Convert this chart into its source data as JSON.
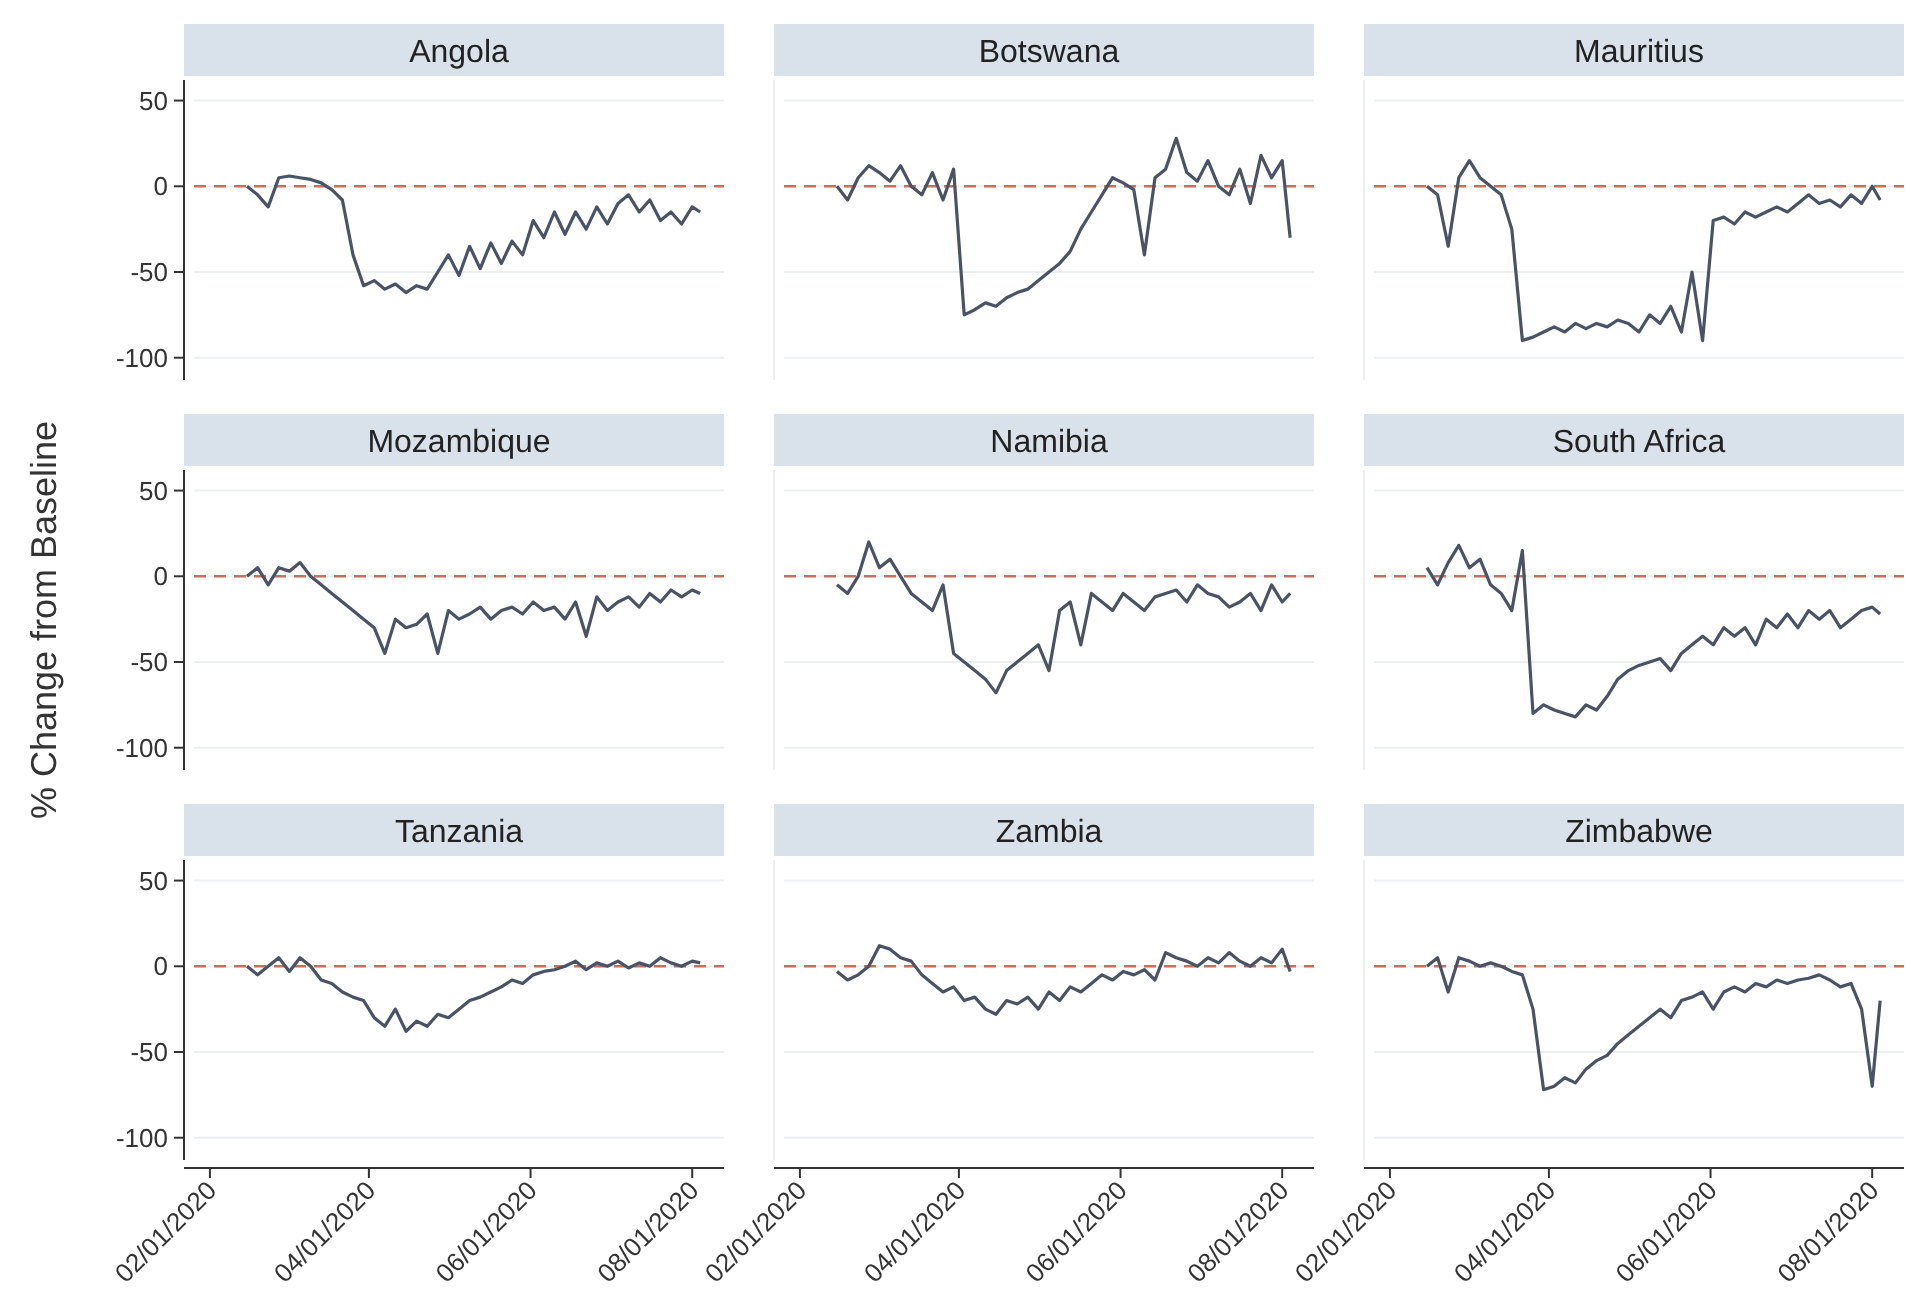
{
  "chart_data": [
    {
      "type": "line",
      "title": "Angola",
      "tick_labels": "y",
      "color": "#4a5366",
      "grid": "y",
      "xlim": [
        "2020-01-26",
        "2020-08-13"
      ],
      "ylim": [
        -113,
        62
      ],
      "yticks": [
        50,
        0,
        -50,
        -100
      ],
      "ref_lines": [
        {
          "axis": "y",
          "value": 0,
          "color": "#c0735a",
          "line_style": "dashed"
        }
      ],
      "x": [
        "2020-02-15",
        "2020-02-19",
        "2020-02-23",
        "2020-02-27",
        "2020-03-02",
        "2020-03-06",
        "2020-03-10",
        "2020-03-14",
        "2020-03-18",
        "2020-03-22",
        "2020-03-26",
        "2020-03-30",
        "2020-04-03",
        "2020-04-07",
        "2020-04-11",
        "2020-04-15",
        "2020-04-19",
        "2020-04-23",
        "2020-04-27",
        "2020-05-01",
        "2020-05-05",
        "2020-05-09",
        "2020-05-13",
        "2020-05-17",
        "2020-05-21",
        "2020-05-25",
        "2020-05-29",
        "2020-06-02",
        "2020-06-06",
        "2020-06-10",
        "2020-06-14",
        "2020-06-18",
        "2020-06-22",
        "2020-06-26",
        "2020-06-30",
        "2020-07-04",
        "2020-07-08",
        "2020-07-12",
        "2020-07-16",
        "2020-07-20",
        "2020-07-24",
        "2020-07-28",
        "2020-08-01",
        "2020-08-04"
      ],
      "values": [
        0,
        -5,
        -12,
        5,
        6,
        5,
        4,
        2,
        -2,
        -8,
        -40,
        -58,
        -55,
        -60,
        -57,
        -62,
        -58,
        -60,
        -50,
        -40,
        -52,
        -35,
        -48,
        -33,
        -45,
        -32,
        -40,
        -20,
        -30,
        -15,
        -28,
        -15,
        -25,
        -12,
        -22,
        -10,
        -5,
        -15,
        -8,
        -20,
        -15,
        -22,
        -12,
        -15
      ]
    },
    {
      "type": "line",
      "title": "Botswana",
      "tick_labels": false,
      "color": "#4a5366",
      "grid": "y",
      "xlim": [
        "2020-01-26",
        "2020-08-13"
      ],
      "ylim": [
        -113,
        62
      ],
      "yticks": [
        50,
        0,
        -50,
        -100
      ],
      "ref_lines": [
        {
          "axis": "y",
          "value": 0,
          "color": "#c0735a",
          "line_style": "dashed"
        }
      ],
      "x": [
        "2020-02-15",
        "2020-02-19",
        "2020-02-23",
        "2020-02-27",
        "2020-03-02",
        "2020-03-06",
        "2020-03-10",
        "2020-03-14",
        "2020-03-18",
        "2020-03-22",
        "2020-03-26",
        "2020-03-30",
        "2020-04-03",
        "2020-04-07",
        "2020-04-11",
        "2020-04-15",
        "2020-04-19",
        "2020-04-23",
        "2020-04-27",
        "2020-05-01",
        "2020-05-05",
        "2020-05-09",
        "2020-05-13",
        "2020-05-17",
        "2020-05-21",
        "2020-05-25",
        "2020-05-29",
        "2020-06-02",
        "2020-06-06",
        "2020-06-10",
        "2020-06-14",
        "2020-06-18",
        "2020-06-22",
        "2020-06-26",
        "2020-06-30",
        "2020-07-04",
        "2020-07-08",
        "2020-07-12",
        "2020-07-16",
        "2020-07-20",
        "2020-07-24",
        "2020-07-28",
        "2020-08-01",
        "2020-08-04"
      ],
      "values": [
        0,
        -8,
        5,
        12,
        8,
        3,
        12,
        0,
        -5,
        8,
        -8,
        10,
        -75,
        -72,
        -68,
        -70,
        -65,
        -62,
        -60,
        -55,
        -50,
        -45,
        -38,
        -25,
        -15,
        -5,
        5,
        2,
        -2,
        -40,
        5,
        10,
        28,
        8,
        3,
        15,
        0,
        -5,
        10,
        -10,
        18,
        5,
        15,
        -30
      ]
    },
    {
      "type": "line",
      "title": "Mauritius",
      "tick_labels": false,
      "color": "#4a5366",
      "grid": "y",
      "xlim": [
        "2020-01-26",
        "2020-08-13"
      ],
      "ylim": [
        -113,
        62
      ],
      "yticks": [
        50,
        0,
        -50,
        -100
      ],
      "ref_lines": [
        {
          "axis": "y",
          "value": 0,
          "color": "#c0735a",
          "line_style": "dashed"
        }
      ],
      "x": [
        "2020-02-15",
        "2020-02-19",
        "2020-02-23",
        "2020-02-27",
        "2020-03-02",
        "2020-03-06",
        "2020-03-10",
        "2020-03-14",
        "2020-03-18",
        "2020-03-22",
        "2020-03-26",
        "2020-03-30",
        "2020-04-03",
        "2020-04-07",
        "2020-04-11",
        "2020-04-15",
        "2020-04-19",
        "2020-04-23",
        "2020-04-27",
        "2020-05-01",
        "2020-05-05",
        "2020-05-09",
        "2020-05-13",
        "2020-05-17",
        "2020-05-21",
        "2020-05-25",
        "2020-05-29",
        "2020-06-02",
        "2020-06-06",
        "2020-06-10",
        "2020-06-14",
        "2020-06-18",
        "2020-06-22",
        "2020-06-26",
        "2020-06-30",
        "2020-07-04",
        "2020-07-08",
        "2020-07-12",
        "2020-07-16",
        "2020-07-20",
        "2020-07-24",
        "2020-07-28",
        "2020-08-01",
        "2020-08-04"
      ],
      "values": [
        0,
        -5,
        -35,
        5,
        15,
        5,
        0,
        -5,
        -25,
        -90,
        -88,
        -85,
        -82,
        -85,
        -80,
        -83,
        -80,
        -82,
        -78,
        -80,
        -85,
        -75,
        -80,
        -70,
        -85,
        -50,
        -90,
        -20,
        -18,
        -22,
        -15,
        -18,
        -15,
        -12,
        -15,
        -10,
        -5,
        -10,
        -8,
        -12,
        -5,
        -10,
        0,
        -8
      ]
    },
    {
      "type": "line",
      "title": "Mozambique",
      "ylabel": "% Change from Baseline",
      "tick_labels": "y",
      "color": "#4a5366",
      "grid": "y",
      "xlim": [
        "2020-01-26",
        "2020-08-13"
      ],
      "ylim": [
        -113,
        62
      ],
      "yticks": [
        50,
        0,
        -50,
        -100
      ],
      "ref_lines": [
        {
          "axis": "y",
          "value": 0,
          "color": "#c0735a",
          "line_style": "dashed"
        }
      ],
      "x": [
        "2020-02-15",
        "2020-02-19",
        "2020-02-23",
        "2020-02-27",
        "2020-03-02",
        "2020-03-06",
        "2020-03-10",
        "2020-03-14",
        "2020-03-18",
        "2020-03-22",
        "2020-03-26",
        "2020-03-30",
        "2020-04-03",
        "2020-04-07",
        "2020-04-11",
        "2020-04-15",
        "2020-04-19",
        "2020-04-23",
        "2020-04-27",
        "2020-05-01",
        "2020-05-05",
        "2020-05-09",
        "2020-05-13",
        "2020-05-17",
        "2020-05-21",
        "2020-05-25",
        "2020-05-29",
        "2020-06-02",
        "2020-06-06",
        "2020-06-10",
        "2020-06-14",
        "2020-06-18",
        "2020-06-22",
        "2020-06-26",
        "2020-06-30",
        "2020-07-04",
        "2020-07-08",
        "2020-07-12",
        "2020-07-16",
        "2020-07-20",
        "2020-07-24",
        "2020-07-28",
        "2020-08-01",
        "2020-08-04"
      ],
      "values": [
        0,
        5,
        -5,
        5,
        3,
        8,
        0,
        -5,
        -10,
        -15,
        -20,
        -25,
        -30,
        -45,
        -25,
        -30,
        -28,
        -22,
        -45,
        -20,
        -25,
        -22,
        -18,
        -25,
        -20,
        -18,
        -22,
        -15,
        -20,
        -18,
        -25,
        -15,
        -35,
        -12,
        -20,
        -15,
        -12,
        -18,
        -10,
        -15,
        -8,
        -12,
        -8,
        -10
      ]
    },
    {
      "type": "line",
      "title": "Namibia",
      "tick_labels": false,
      "color": "#4a5366",
      "grid": "y",
      "xlim": [
        "2020-01-26",
        "2020-08-13"
      ],
      "ylim": [
        -113,
        62
      ],
      "yticks": [
        50,
        0,
        -50,
        -100
      ],
      "ref_lines": [
        {
          "axis": "y",
          "value": 0,
          "color": "#c0735a",
          "line_style": "dashed"
        }
      ],
      "x": [
        "2020-02-15",
        "2020-02-19",
        "2020-02-23",
        "2020-02-27",
        "2020-03-02",
        "2020-03-06",
        "2020-03-10",
        "2020-03-14",
        "2020-03-18",
        "2020-03-22",
        "2020-03-26",
        "2020-03-30",
        "2020-04-03",
        "2020-04-07",
        "2020-04-11",
        "2020-04-15",
        "2020-04-19",
        "2020-04-23",
        "2020-04-27",
        "2020-05-01",
        "2020-05-05",
        "2020-05-09",
        "2020-05-13",
        "2020-05-17",
        "2020-05-21",
        "2020-05-25",
        "2020-05-29",
        "2020-06-02",
        "2020-06-06",
        "2020-06-10",
        "2020-06-14",
        "2020-06-18",
        "2020-06-22",
        "2020-06-26",
        "2020-06-30",
        "2020-07-04",
        "2020-07-08",
        "2020-07-12",
        "2020-07-16",
        "2020-07-20",
        "2020-07-24",
        "2020-07-28",
        "2020-08-01",
        "2020-08-04"
      ],
      "values": [
        -5,
        -10,
        0,
        20,
        5,
        10,
        0,
        -10,
        -15,
        -20,
        -5,
        -45,
        -50,
        -55,
        -60,
        -68,
        -55,
        -50,
        -45,
        -40,
        -55,
        -20,
        -15,
        -40,
        -10,
        -15,
        -20,
        -10,
        -15,
        -20,
        -12,
        -10,
        -8,
        -15,
        -5,
        -10,
        -12,
        -18,
        -15,
        -10,
        -20,
        -5,
        -15,
        -10
      ]
    },
    {
      "type": "line",
      "title": "South Africa",
      "tick_labels": false,
      "color": "#4a5366",
      "grid": "y",
      "xlim": [
        "2020-01-26",
        "2020-08-13"
      ],
      "ylim": [
        -113,
        62
      ],
      "yticks": [
        50,
        0,
        -50,
        -100
      ],
      "ref_lines": [
        {
          "axis": "y",
          "value": 0,
          "color": "#c0735a",
          "line_style": "dashed"
        }
      ],
      "x": [
        "2020-02-15",
        "2020-02-19",
        "2020-02-23",
        "2020-02-27",
        "2020-03-02",
        "2020-03-06",
        "2020-03-10",
        "2020-03-14",
        "2020-03-18",
        "2020-03-22",
        "2020-03-26",
        "2020-03-30",
        "2020-04-03",
        "2020-04-07",
        "2020-04-11",
        "2020-04-15",
        "2020-04-19",
        "2020-04-23",
        "2020-04-27",
        "2020-05-01",
        "2020-05-05",
        "2020-05-09",
        "2020-05-13",
        "2020-05-17",
        "2020-05-21",
        "2020-05-25",
        "2020-05-29",
        "2020-06-02",
        "2020-06-06",
        "2020-06-10",
        "2020-06-14",
        "2020-06-18",
        "2020-06-22",
        "2020-06-26",
        "2020-06-30",
        "2020-07-04",
        "2020-07-08",
        "2020-07-12",
        "2020-07-16",
        "2020-07-20",
        "2020-07-24",
        "2020-07-28",
        "2020-08-01",
        "2020-08-04"
      ],
      "values": [
        5,
        -5,
        8,
        18,
        5,
        10,
        -5,
        -10,
        -20,
        15,
        -80,
        -75,
        -78,
        -80,
        -82,
        -75,
        -78,
        -70,
        -60,
        -55,
        -52,
        -50,
        -48,
        -55,
        -45,
        -40,
        -35,
        -40,
        -30,
        -35,
        -30,
        -40,
        -25,
        -30,
        -22,
        -30,
        -20,
        -25,
        -20,
        -30,
        -25,
        -20,
        -18,
        -22
      ]
    },
    {
      "type": "line",
      "title": "Tanzania",
      "color": "#4a5366",
      "grid": "y",
      "xlim": [
        "2020-01-26",
        "2020-08-13"
      ],
      "ylim": [
        -113,
        62
      ],
      "yticks": [
        50,
        0,
        -50,
        -100
      ],
      "xticks": [
        {
          "value": "2020-02-01",
          "label": "02/01/2020"
        },
        {
          "value": "2020-04-01",
          "label": "04/01/2020"
        },
        {
          "value": "2020-06-01",
          "label": "06/01/2020"
        },
        {
          "value": "2020-08-01",
          "label": "08/01/2020"
        }
      ],
      "ref_lines": [
        {
          "axis": "y",
          "value": 0,
          "color": "#c0735a",
          "line_style": "dashed"
        }
      ],
      "x": [
        "2020-02-15",
        "2020-02-19",
        "2020-02-23",
        "2020-02-27",
        "2020-03-02",
        "2020-03-06",
        "2020-03-10",
        "2020-03-14",
        "2020-03-18",
        "2020-03-22",
        "2020-03-26",
        "2020-03-30",
        "2020-04-03",
        "2020-04-07",
        "2020-04-11",
        "2020-04-15",
        "2020-04-19",
        "2020-04-23",
        "2020-04-27",
        "2020-05-01",
        "2020-05-05",
        "2020-05-09",
        "2020-05-13",
        "2020-05-17",
        "2020-05-21",
        "2020-05-25",
        "2020-05-29",
        "2020-06-02",
        "2020-06-06",
        "2020-06-10",
        "2020-06-14",
        "2020-06-18",
        "2020-06-22",
        "2020-06-26",
        "2020-06-30",
        "2020-07-04",
        "2020-07-08",
        "2020-07-12",
        "2020-07-16",
        "2020-07-20",
        "2020-07-24",
        "2020-07-28",
        "2020-08-01",
        "2020-08-04"
      ],
      "values": [
        0,
        -5,
        0,
        5,
        -3,
        5,
        0,
        -8,
        -10,
        -15,
        -18,
        -20,
        -30,
        -35,
        -25,
        -38,
        -32,
        -35,
        -28,
        -30,
        -25,
        -20,
        -18,
        -15,
        -12,
        -8,
        -10,
        -5,
        -3,
        -2,
        0,
        3,
        -2,
        2,
        0,
        3,
        -1,
        2,
        0,
        5,
        2,
        0,
        3,
        2
      ]
    },
    {
      "type": "line",
      "title": "Zambia",
      "tick_labels": "x",
      "color": "#4a5366",
      "grid": "y",
      "xlim": [
        "2020-01-26",
        "2020-08-13"
      ],
      "ylim": [
        -113,
        62
      ],
      "yticks": [
        50,
        0,
        -50,
        -100
      ],
      "xticks": [
        {
          "value": "2020-02-01",
          "label": "02/01/2020"
        },
        {
          "value": "2020-04-01",
          "label": "04/01/2020"
        },
        {
          "value": "2020-06-01",
          "label": "06/01/2020"
        },
        {
          "value": "2020-08-01",
          "label": "08/01/2020"
        }
      ],
      "ref_lines": [
        {
          "axis": "y",
          "value": 0,
          "color": "#c0735a",
          "line_style": "dashed"
        }
      ],
      "x": [
        "2020-02-15",
        "2020-02-19",
        "2020-02-23",
        "2020-02-27",
        "2020-03-02",
        "2020-03-06",
        "2020-03-10",
        "2020-03-14",
        "2020-03-18",
        "2020-03-22",
        "2020-03-26",
        "2020-03-30",
        "2020-04-03",
        "2020-04-07",
        "2020-04-11",
        "2020-04-15",
        "2020-04-19",
        "2020-04-23",
        "2020-04-27",
        "2020-05-01",
        "2020-05-05",
        "2020-05-09",
        "2020-05-13",
        "2020-05-17",
        "2020-05-21",
        "2020-05-25",
        "2020-05-29",
        "2020-06-02",
        "2020-06-06",
        "2020-06-10",
        "2020-06-14",
        "2020-06-18",
        "2020-06-22",
        "2020-06-26",
        "2020-06-30",
        "2020-07-04",
        "2020-07-08",
        "2020-07-12",
        "2020-07-16",
        "2020-07-20",
        "2020-07-24",
        "2020-07-28",
        "2020-08-01",
        "2020-08-04"
      ],
      "values": [
        -3,
        -8,
        -5,
        0,
        12,
        10,
        5,
        3,
        -5,
        -10,
        -15,
        -12,
        -20,
        -18,
        -25,
        -28,
        -20,
        -22,
        -18,
        -25,
        -15,
        -20,
        -12,
        -15,
        -10,
        -5,
        -8,
        -3,
        -5,
        -2,
        -8,
        8,
        5,
        3,
        0,
        5,
        2,
        8,
        3,
        0,
        5,
        2,
        10,
        -3
      ]
    },
    {
      "type": "line",
      "title": "Zimbabwe",
      "tick_labels": "x",
      "color": "#4a5366",
      "grid": "y",
      "xlim": [
        "2020-01-26",
        "2020-08-13"
      ],
      "ylim": [
        -113,
        62
      ],
      "yticks": [
        50,
        0,
        -50,
        -100
      ],
      "xticks": [
        {
          "value": "2020-02-01",
          "label": "02/01/2020"
        },
        {
          "value": "2020-04-01",
          "label": "04/01/2020"
        },
        {
          "value": "2020-06-01",
          "label": "06/01/2020"
        },
        {
          "value": "2020-08-01",
          "label": "08/01/2020"
        }
      ],
      "ref_lines": [
        {
          "axis": "y",
          "value": 0,
          "color": "#c0735a",
          "line_style": "dashed"
        }
      ],
      "x": [
        "2020-02-15",
        "2020-02-19",
        "2020-02-23",
        "2020-02-27",
        "2020-03-02",
        "2020-03-06",
        "2020-03-10",
        "2020-03-14",
        "2020-03-18",
        "2020-03-22",
        "2020-03-26",
        "2020-03-30",
        "2020-04-03",
        "2020-04-07",
        "2020-04-11",
        "2020-04-15",
        "2020-04-19",
        "2020-04-23",
        "2020-04-27",
        "2020-05-01",
        "2020-05-05",
        "2020-05-09",
        "2020-05-13",
        "2020-05-17",
        "2020-05-21",
        "2020-05-25",
        "2020-05-29",
        "2020-06-02",
        "2020-06-06",
        "2020-06-10",
        "2020-06-14",
        "2020-06-18",
        "2020-06-22",
        "2020-06-26",
        "2020-06-30",
        "2020-07-04",
        "2020-07-08",
        "2020-07-12",
        "2020-07-16",
        "2020-07-20",
        "2020-07-24",
        "2020-07-28",
        "2020-08-01",
        "2020-08-04"
      ],
      "values": [
        0,
        5,
        -15,
        5,
        3,
        0,
        2,
        0,
        -3,
        -5,
        -25,
        -72,
        -70,
        -65,
        -68,
        -60,
        -55,
        -52,
        -45,
        -40,
        -35,
        -30,
        -25,
        -30,
        -20,
        -18,
        -15,
        -25,
        -15,
        -12,
        -15,
        -10,
        -12,
        -8,
        -10,
        -8,
        -7,
        -5,
        -8,
        -12,
        -10,
        -25,
        -70,
        -20
      ]
    }
  ]
}
